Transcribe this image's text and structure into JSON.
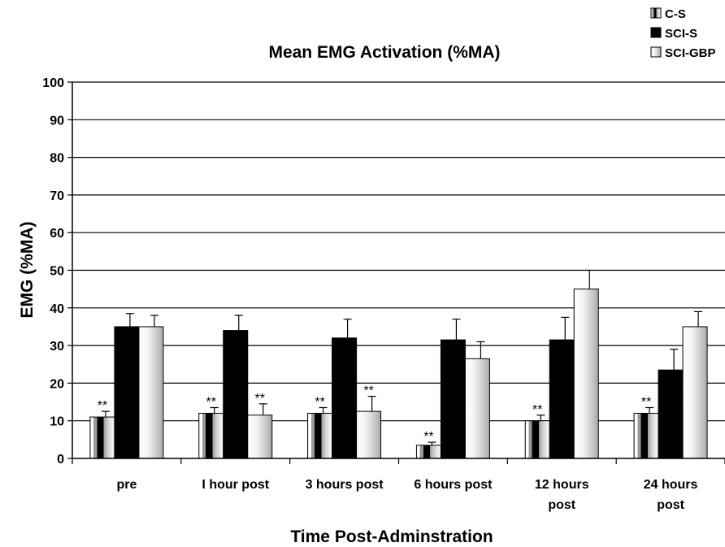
{
  "chart_data": {
    "type": "bar",
    "title": "Mean EMG Activation (%MA)",
    "xlabel": "Time Post-Adminstration",
    "ylabel": "EMG (%MA)",
    "ylim": [
      0,
      100
    ],
    "yticks": [
      "0",
      "10",
      "20",
      "30",
      "40",
      "50",
      "60",
      "70",
      "80",
      "90",
      "100"
    ],
    "grid": true,
    "legend_position": "top-right",
    "categories": [
      [
        "pre"
      ],
      [
        "I hour post"
      ],
      [
        "3 hours post"
      ],
      [
        "6 hours post"
      ],
      [
        "12 hours",
        "post"
      ],
      [
        "24 hours",
        "post"
      ]
    ],
    "series": [
      {
        "name": "C-S",
        "fill": "striped",
        "values": [
          11,
          12,
          12,
          3.5,
          10,
          12
        ],
        "errors": [
          1.5,
          1.5,
          1.5,
          0.8,
          1.5,
          1.5
        ]
      },
      {
        "name": "SCI-S",
        "fill": "black",
        "values": [
          35,
          34,
          32,
          31.5,
          31.5,
          23.5
        ],
        "errors": [
          3.5,
          4,
          5,
          5.5,
          6,
          5.5
        ]
      },
      {
        "name": "SCI-GBP",
        "fill": "light",
        "values": [
          35,
          11.5,
          12.5,
          26.5,
          45,
          35
        ],
        "errors": [
          3,
          3,
          4,
          4.5,
          5,
          4
        ]
      }
    ],
    "annotations": [
      {
        "label": "**",
        "category": 0,
        "series": 0
      },
      {
        "label": "**",
        "category": 1,
        "series": 0
      },
      {
        "label": "**",
        "category": 1,
        "series": 2
      },
      {
        "label": "**",
        "category": 2,
        "series": 0
      },
      {
        "label": "**",
        "category": 2,
        "series": 2
      },
      {
        "label": "**",
        "category": 3,
        "series": 0
      },
      {
        "label": "**",
        "category": 4,
        "series": 0
      },
      {
        "label": "**",
        "category": 5,
        "series": 0
      }
    ]
  }
}
